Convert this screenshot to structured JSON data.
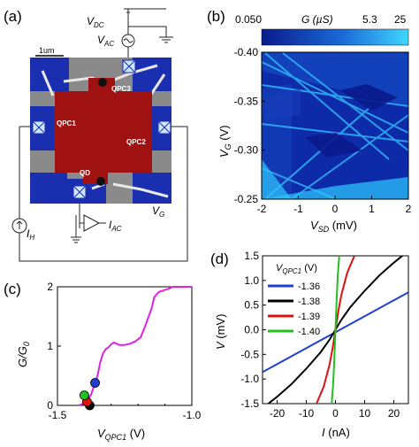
{
  "panels": {
    "a": {
      "label": "(a)",
      "scale_bar": "1um",
      "vdc_label": "V",
      "vdc_sub": "DC",
      "vac_label": "V",
      "vac_sub": "AC",
      "qpc3": "QPC3",
      "qpc1": "QPC1",
      "qpc2": "QPC2",
      "qd": "QD",
      "vg_label": "V",
      "vg_sub": "G",
      "ih_label": "I",
      "ih_sub": "H",
      "iac_label": "I",
      "iac_sub": "AC"
    },
    "b": {
      "label": "(b)",
      "colorbar_title": "G (µS)",
      "colorbar_ticks": [
        "0.050",
        "5.3",
        "25"
      ],
      "colors": {
        "low": "#0a1a8c",
        "high": "#3fd6ff"
      }
    },
    "c": {
      "label": "(c)",
      "line_color": "#e020e8"
    },
    "d": {
      "label": "(d)"
    }
  },
  "chart_data": [
    {
      "type": "heatmap",
      "xlabel": "V_SD (mV)",
      "ylabel": "V_G (V)",
      "xlim": [
        -2,
        2
      ],
      "ylim": [
        -0.4,
        -0.25
      ],
      "x_ticks": [
        "-2",
        "-1",
        "0",
        "1",
        "2"
      ],
      "y_ticks": [
        "-0.40",
        "-0.35",
        "-0.30",
        "-0.25"
      ],
      "colorbar": {
        "label": "G (µS)",
        "ticks": [
          0.05,
          5.3,
          25
        ]
      },
      "grid": false
    },
    {
      "type": "line",
      "xlabel": "V_QPC1 (V)",
      "ylabel": "G/G_0",
      "xlim": [
        -1.5,
        -1.0
      ],
      "ylim": [
        0,
        2
      ],
      "x_ticks": [
        "-1.5",
        "-1.0"
      ],
      "y_ticks": [
        "0",
        "1",
        "2"
      ],
      "series": [
        {
          "x": [
            -1.42,
            -1.415,
            -1.405,
            -1.39,
            -1.375,
            -1.36,
            -1.35,
            -1.34,
            -1.33,
            -1.32,
            -1.31,
            -1.3,
            -1.29,
            -1.28,
            -1.27,
            -1.25,
            -1.23,
            -1.21,
            -1.19,
            -1.17,
            -1.15,
            -1.14,
            -1.13,
            -1.12,
            -1.11,
            -1.1,
            -1.09,
            -1.08,
            -1.07,
            -1.05,
            -1.02,
            -1.0
          ],
          "y": [
            0.0,
            0.01,
            0.03,
            0.08,
            0.18,
            0.38,
            0.52,
            0.74,
            0.88,
            0.95,
            0.98,
            1.03,
            1.06,
            1.04,
            1.02,
            1.02,
            1.04,
            1.08,
            1.15,
            1.38,
            1.63,
            1.82,
            1.88,
            1.92,
            1.93,
            1.95,
            1.96,
            1.98,
            2.0,
            2.0,
            2.0,
            2.0
          ]
        }
      ],
      "markers": [
        {
          "x": -1.36,
          "y": 0.38,
          "color": "#1f3fd0"
        },
        {
          "x": -1.38,
          "y": 0.0,
          "color": "#000000"
        },
        {
          "x": -1.39,
          "y": 0.06,
          "color": "#e01010"
        },
        {
          "x": -1.4,
          "y": 0.17,
          "color": "#22c022"
        }
      ],
      "grid": false
    },
    {
      "type": "line",
      "xlabel": "I (nA)",
      "ylabel": "V (mV)",
      "xlim": [
        -25,
        25
      ],
      "ylim": [
        -1.5,
        1.5
      ],
      "x_ticks": [
        "-20",
        "-10",
        "0",
        "10",
        "20"
      ],
      "y_ticks": [
        "-1.5",
        "-1.0",
        "-0.5",
        "0.0",
        "0.5",
        "1.0",
        "1.5"
      ],
      "legend_title": "V_QPC1 (V)",
      "legend_position": "top-left",
      "series": [
        {
          "name": "-1.36",
          "color": "#1f3fd0",
          "x": [
            -25,
            25
          ],
          "y": [
            -0.86,
            0.76
          ]
        },
        {
          "name": "-1.38",
          "color": "#000000",
          "x": [
            -23,
            -20,
            -15,
            -10,
            -5,
            -2,
            0,
            2,
            5,
            10,
            15,
            20,
            25
          ],
          "y": [
            -1.5,
            -1.36,
            -1.1,
            -0.79,
            -0.45,
            -0.2,
            0.0,
            0.2,
            0.45,
            0.79,
            1.1,
            1.36,
            1.6
          ]
        },
        {
          "name": "-1.39",
          "color": "#e01010",
          "x": [
            -6.5,
            -4,
            -2,
            -1,
            0,
            1,
            2,
            4,
            6.5
          ],
          "y": [
            -1.5,
            -1.15,
            -0.7,
            -0.38,
            0.0,
            0.38,
            0.7,
            1.15,
            1.5
          ]
        },
        {
          "name": "-1.40",
          "color": "#22c022",
          "x": [
            -1.3,
            -0.8,
            -0.4,
            0,
            0.4,
            0.8,
            1.3
          ],
          "y": [
            -1.5,
            -1.1,
            -0.6,
            0.0,
            0.6,
            1.1,
            1.5
          ]
        }
      ],
      "grid": false
    }
  ]
}
